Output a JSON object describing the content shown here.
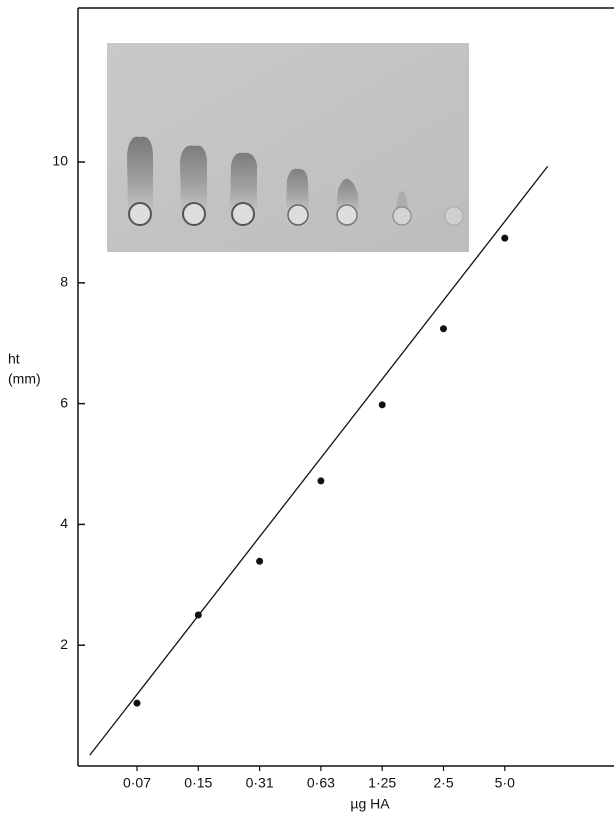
{
  "chart_data": {
    "type": "scatter",
    "categories": [
      "0·07",
      "0·15",
      "0·31",
      "0·63",
      "1·25",
      "2·5",
      "5·0"
    ],
    "values": [
      1.04,
      2.5,
      3.39,
      4.72,
      5.98,
      7.24,
      8.74
    ],
    "color": "#111111",
    "fit_line": {
      "x_index": [
        -0.77,
        6.7
      ],
      "y": [
        0.18,
        9.93
      ]
    },
    "ylim": [
      0,
      12.6
    ],
    "yticks": [
      2,
      4,
      6,
      8,
      10
    ],
    "x_label": "µg HA",
    "y_label": [
      "ht",
      "(mm)"
    ]
  }
}
